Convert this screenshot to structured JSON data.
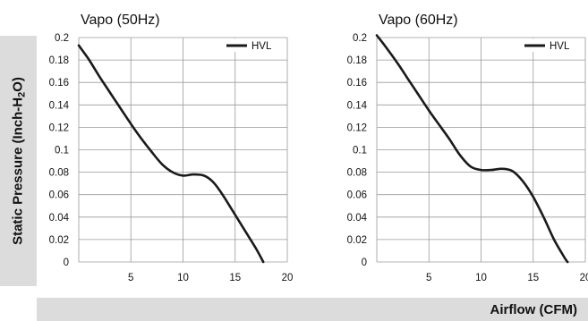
{
  "y_axis_label": {
    "prefix": "Static Pressure (Inch-H",
    "sub": "2",
    "suffix": "O)"
  },
  "x_axis_label": "Airflow (CFM)",
  "chart_data": [
    {
      "type": "line",
      "title": "Vapo (50Hz)",
      "xlim": [
        0,
        20
      ],
      "ylim": [
        0,
        0.2
      ],
      "xticks": [
        5,
        10,
        15,
        20
      ],
      "yticks": [
        0,
        0.02,
        0.04,
        0.06,
        0.08,
        0.1,
        0.12,
        0.14,
        0.16,
        0.18,
        0.2
      ],
      "grid": true,
      "legend": "top-right",
      "series": [
        {
          "name": "HVL",
          "color": "#1a1a1a",
          "x": [
            0,
            1,
            2,
            3,
            4,
            5,
            6,
            7,
            8,
            9,
            10,
            11,
            12,
            12.8,
            13.5,
            14.2,
            15,
            16,
            17,
            17.7
          ],
          "y": [
            0.193,
            0.18,
            0.165,
            0.151,
            0.137,
            0.123,
            0.11,
            0.098,
            0.087,
            0.08,
            0.077,
            0.078,
            0.077,
            0.072,
            0.064,
            0.054,
            0.042,
            0.027,
            0.012,
            0
          ]
        }
      ]
    },
    {
      "type": "line",
      "title": "Vapo (60Hz)",
      "xlim": [
        0,
        20
      ],
      "ylim": [
        0,
        0.2
      ],
      "xticks": [
        5,
        10,
        15,
        20
      ],
      "yticks": [
        0,
        0.02,
        0.04,
        0.06,
        0.08,
        0.1,
        0.12,
        0.14,
        0.16,
        0.18,
        0.2
      ],
      "grid": true,
      "legend": "top-right",
      "series": [
        {
          "name": "HVL",
          "color": "#1a1a1a",
          "x": [
            0,
            1,
            2,
            3,
            4,
            5,
            6,
            7,
            8,
            9,
            10,
            11,
            12,
            13,
            14,
            15,
            16,
            17,
            18,
            18.3
          ],
          "y": [
            0.202,
            0.19,
            0.177,
            0.163,
            0.149,
            0.135,
            0.122,
            0.109,
            0.095,
            0.085,
            0.082,
            0.082,
            0.083,
            0.081,
            0.072,
            0.058,
            0.04,
            0.02,
            0.004,
            0
          ]
        }
      ]
    }
  ]
}
